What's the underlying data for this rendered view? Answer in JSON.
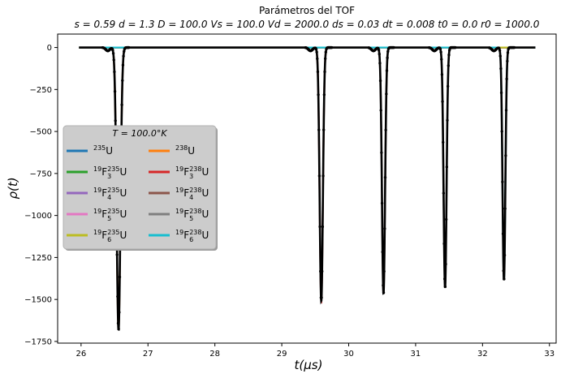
{
  "chart_data": {
    "type": "line",
    "title": "Parámetros del TOF",
    "subtitle": "s = 0.59  d = 1.3  D = 100.0  Vs = 100.0  Vd = 2000.0  ds = 0.03  dt = 0.008  t0 = 0.0  r0 = 1000.0",
    "xlabel": "t(μs)",
    "ylabel": "ρ(t)",
    "xlim": [
      25.65,
      33.1
    ],
    "ylim": [
      -1760,
      80
    ],
    "xticks": [
      26,
      27,
      28,
      29,
      30,
      31,
      32,
      33
    ],
    "yticks": [
      0,
      -250,
      -500,
      -750,
      -1000,
      -1250,
      -1500,
      -1750
    ],
    "grid": false,
    "legend": {
      "title": "T = 100.0°K",
      "placement": "center-left",
      "columns": 2,
      "entries": [
        {
          "sup": "235",
          "base": "U",
          "color": "#1f77b4"
        },
        {
          "sup": "238",
          "base": "U",
          "color": "#ff7f0e"
        },
        {
          "pre": "19",
          "base": "F",
          "sub": "3",
          "sup": "235",
          "tail": "U",
          "color": "#2ca02c"
        },
        {
          "pre": "19",
          "base": "F",
          "sub": "3",
          "sup": "238",
          "tail": "U",
          "color": "#d62728"
        },
        {
          "pre": "19",
          "base": "F",
          "sub": "4",
          "sup": "235",
          "tail": "U",
          "color": "#9467bd"
        },
        {
          "pre": "19",
          "base": "F",
          "sub": "4",
          "sup": "238",
          "tail": "U",
          "color": "#8c564b"
        },
        {
          "pre": "19",
          "base": "F",
          "sub": "5",
          "sup": "235",
          "tail": "U",
          "color": "#e377c2"
        },
        {
          "pre": "19",
          "base": "F",
          "sub": "5",
          "sup": "238",
          "tail": "U",
          "color": "#7f7f7f"
        },
        {
          "pre": "19",
          "base": "F",
          "sub": "6",
          "sup": "235",
          "tail": "U",
          "color": "#bcbd22"
        },
        {
          "pre": "19",
          "base": "F",
          "sub": "6",
          "sup": "238",
          "tail": "U",
          "color": "#17becf"
        }
      ]
    },
    "peaks": [
      {
        "species_color": "#ff7f0e",
        "center": 26.56,
        "width": 0.028,
        "depth": -1680
      },
      {
        "species_color": "#d62728",
        "center": 29.59,
        "width": 0.024,
        "depth": -1510
      },
      {
        "species_color": "#8c564b",
        "center": 30.52,
        "width": 0.023,
        "depth": -1465
      },
      {
        "species_color": "#7f7f7f",
        "center": 31.44,
        "width": 0.022,
        "depth": -1430
      },
      {
        "species_color": "#17becf",
        "center": 32.32,
        "width": 0.021,
        "depth": -1385
      }
    ],
    "small_dips": [
      {
        "center": 26.4,
        "width": 0.03,
        "depth": -20
      },
      {
        "center": 29.43,
        "width": 0.03,
        "depth": -20
      },
      {
        "center": 30.37,
        "width": 0.03,
        "depth": -20
      },
      {
        "center": 31.28,
        "width": 0.03,
        "depth": -20
      },
      {
        "center": 32.17,
        "width": 0.03,
        "depth": -20
      }
    ],
    "total_series_color": "#000000",
    "x_range": [
      25.97,
      32.79
    ]
  }
}
